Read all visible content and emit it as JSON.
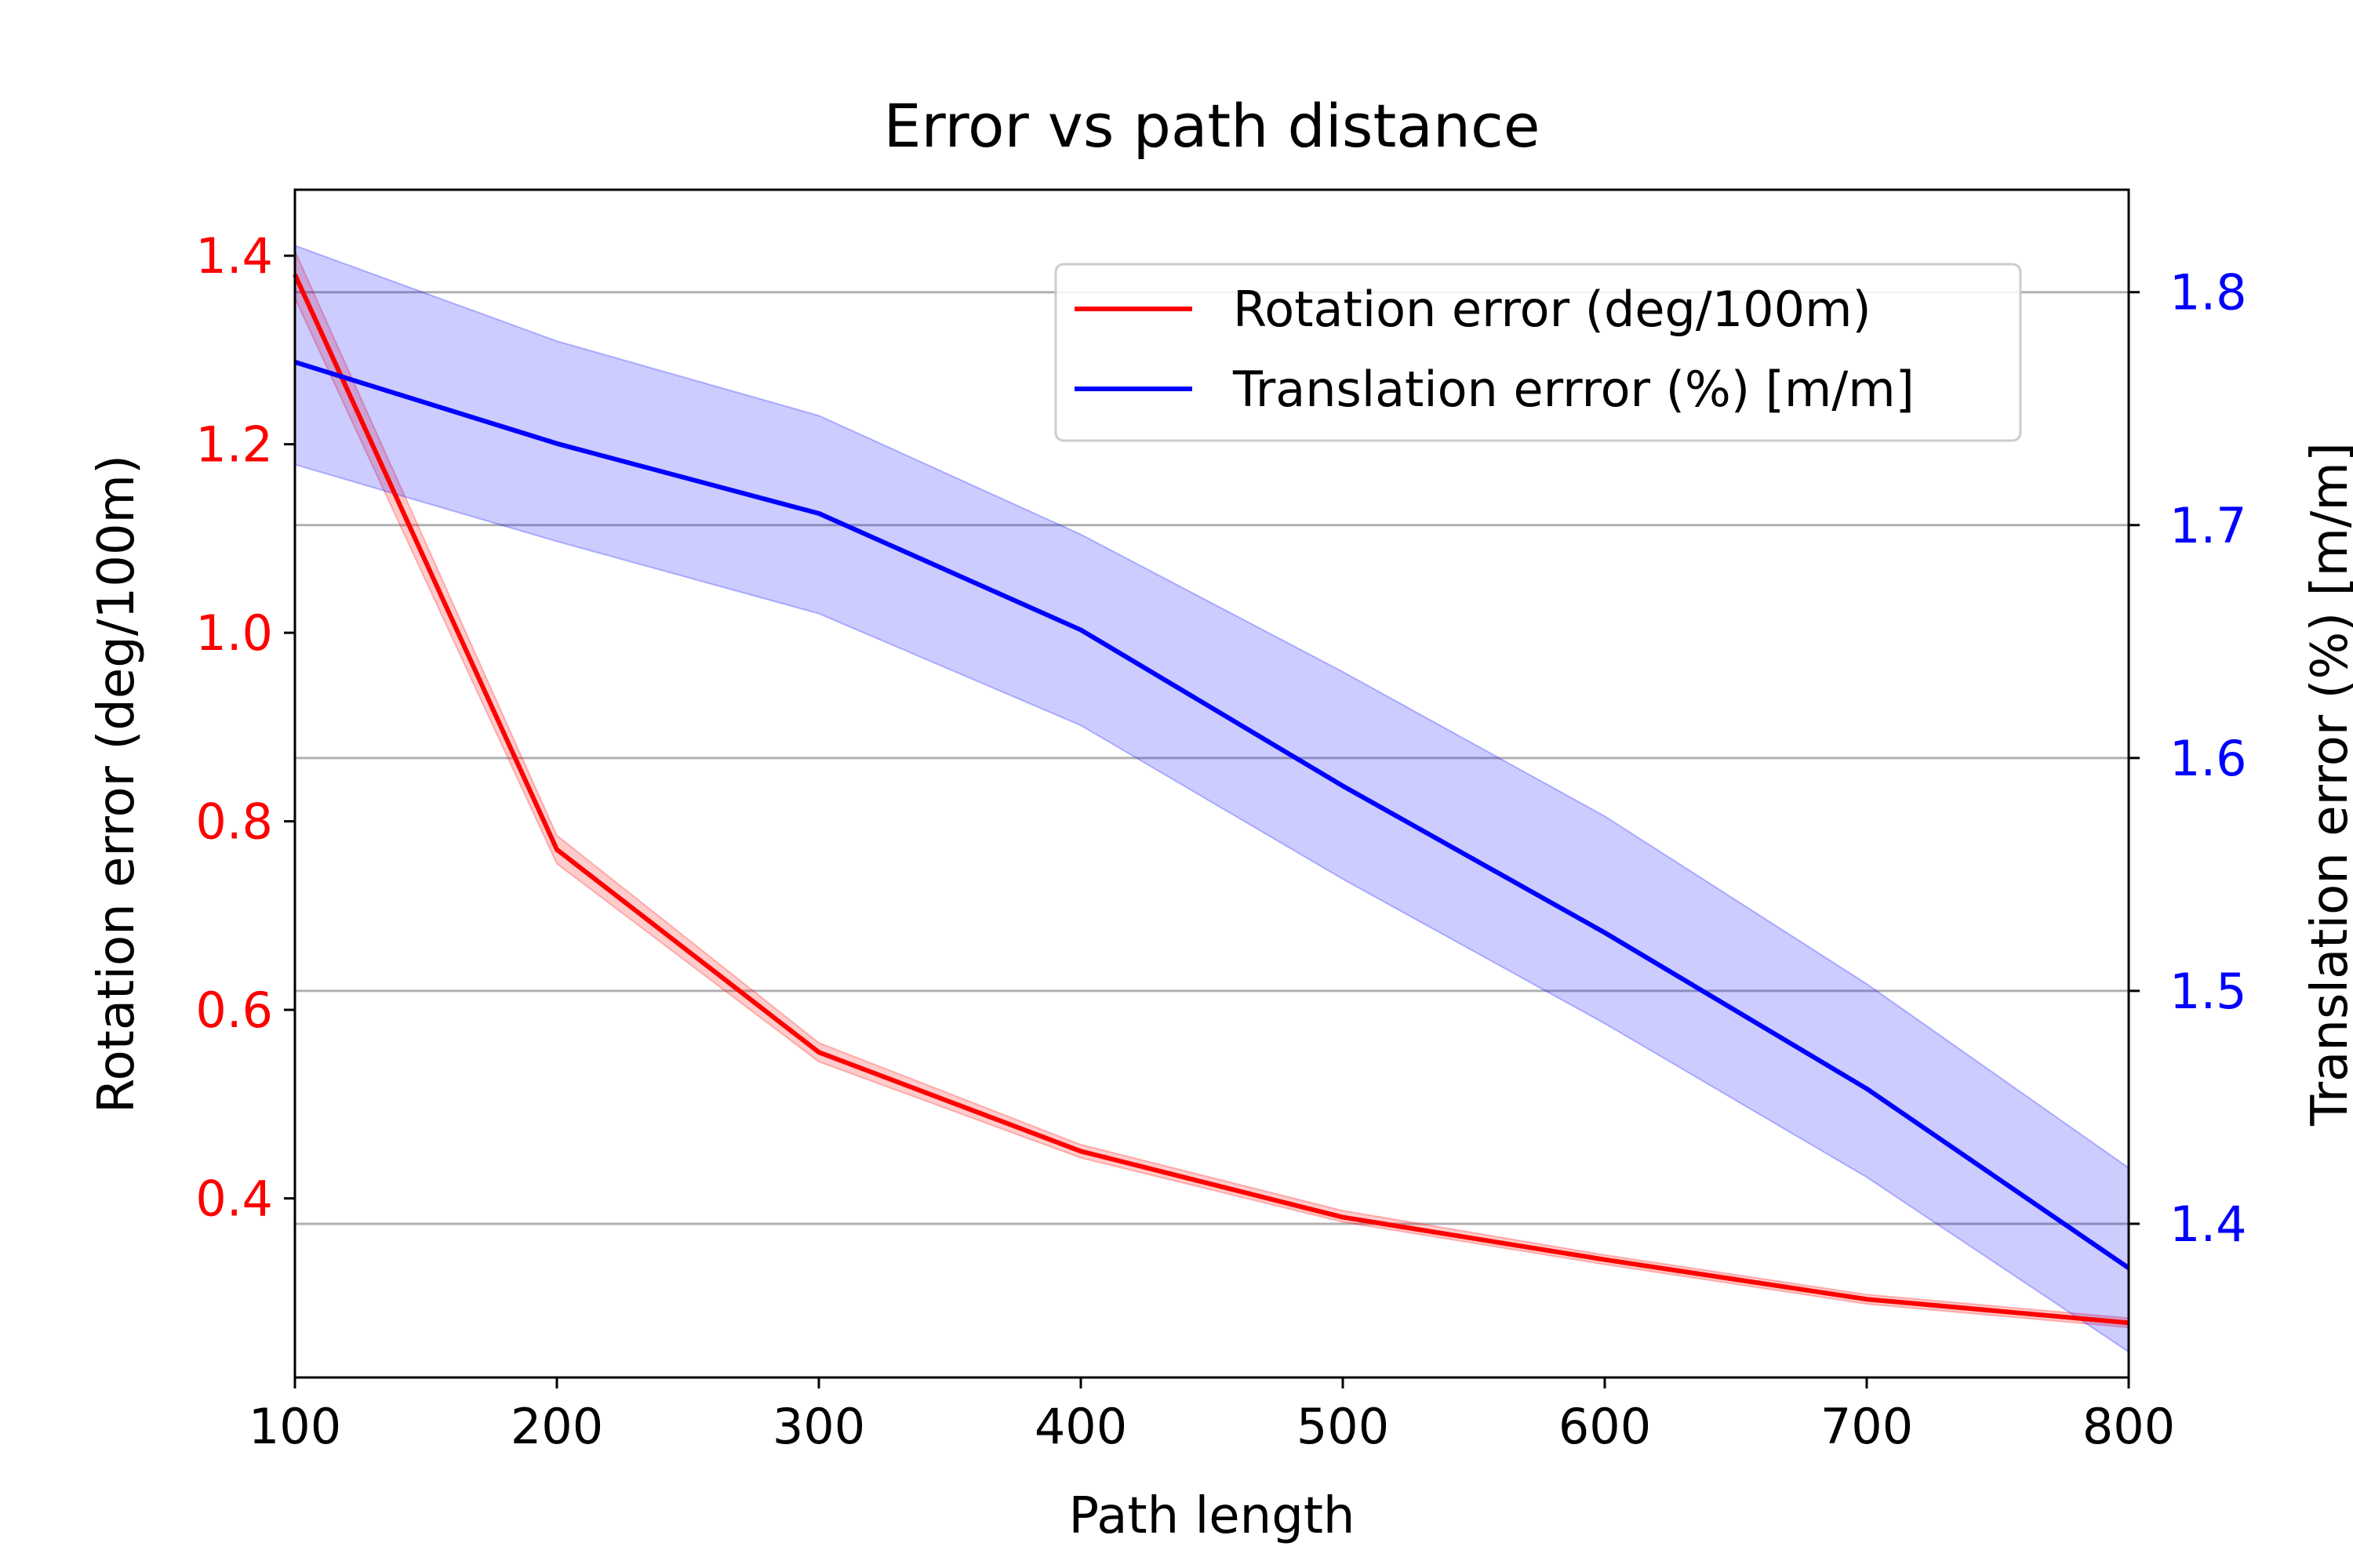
{
  "chart_data": {
    "type": "line",
    "title": "Error vs path distance",
    "xlabel": "Path length",
    "x": [
      100,
      200,
      300,
      400,
      500,
      600,
      700,
      800
    ],
    "xlim": [
      100,
      800
    ],
    "xticks": [
      "100",
      "200",
      "300",
      "400",
      "500",
      "600",
      "700",
      "800"
    ],
    "y_left": {
      "label": "Rotation error (deg/100m)",
      "lim": [
        0.21,
        1.47
      ],
      "ticks": [
        "0.4",
        "0.6",
        "0.8",
        "1.0",
        "1.2",
        "1.4"
      ],
      "color": "#ff0000"
    },
    "y_right": {
      "label": "Translation error (%) [m/m]",
      "lim": [
        1.334,
        1.844
      ],
      "ticks": [
        "1.4",
        "1.5",
        "1.6",
        "1.7",
        "1.8"
      ],
      "color": "#0000ff"
    },
    "grid": "y-right",
    "legend_position": "top-right",
    "series": [
      {
        "name": "Rotation error (deg/100m)",
        "axis": "left",
        "color": "#ff0000",
        "values": [
          1.38,
          0.77,
          0.555,
          0.45,
          0.38,
          0.335,
          0.293,
          0.268
        ],
        "lower": [
          1.355,
          0.755,
          0.545,
          0.443,
          0.375,
          0.33,
          0.288,
          0.263
        ],
        "upper": [
          1.405,
          0.785,
          0.565,
          0.457,
          0.387,
          0.34,
          0.298,
          0.273
        ]
      },
      {
        "name": "Translation errror (%) [m/m]",
        "axis": "right",
        "color": "#0000ff",
        "values": [
          1.77,
          1.735,
          1.705,
          1.655,
          1.588,
          1.525,
          1.458,
          1.381
        ],
        "lower": [
          1.726,
          1.693,
          1.662,
          1.614,
          1.548,
          1.486,
          1.42,
          1.345
        ],
        "upper": [
          1.82,
          1.779,
          1.747,
          1.696,
          1.637,
          1.575,
          1.503,
          1.424
        ]
      }
    ]
  }
}
